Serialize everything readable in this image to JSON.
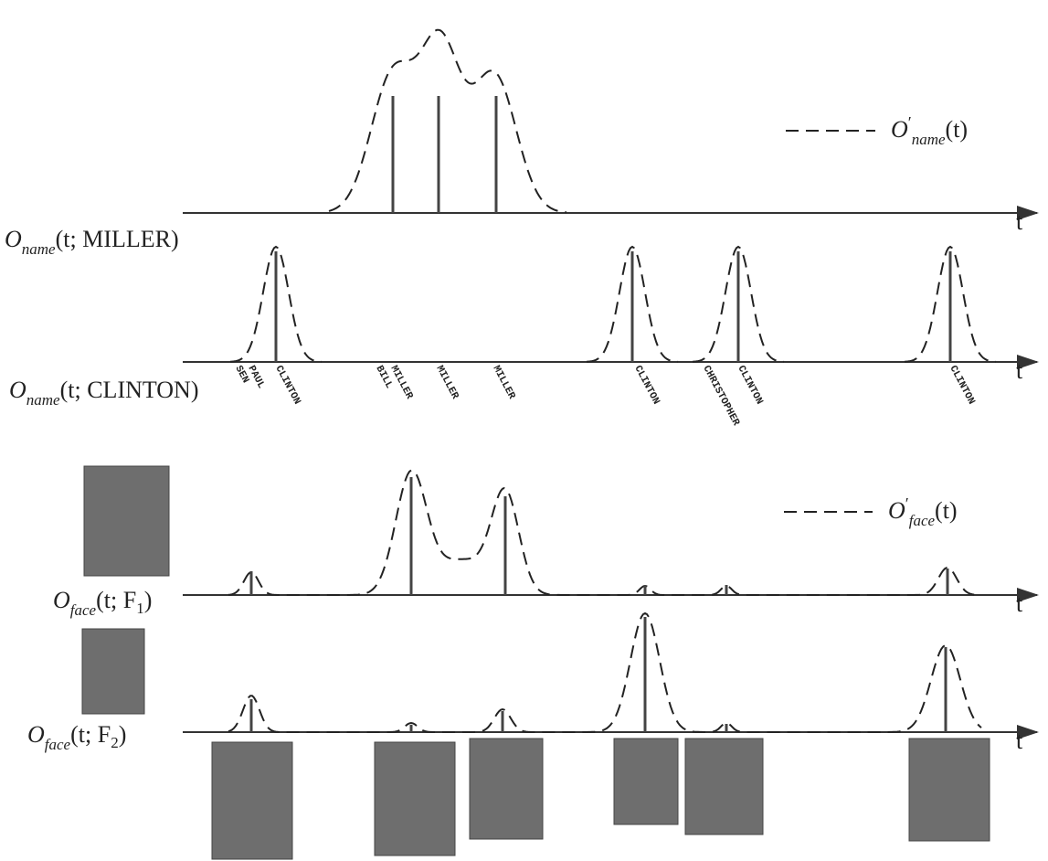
{
  "name_panel": {
    "legend": {
      "symbol": "O",
      "prime": "′",
      "subscript": "name",
      "args": "(t)"
    },
    "miller_label": {
      "symbol": "O",
      "subscript": "name",
      "args": "(t; MILLER)"
    },
    "clinton_label": {
      "symbol": "O",
      "subscript": "name",
      "args": "(t; CLINTON)"
    },
    "axis_labels": [
      "t",
      "t"
    ],
    "tokens": [
      "SEN",
      "PAUL",
      "CLINTON",
      "BILL",
      "MILLER",
      "MILLER",
      "MILLER",
      "CLINTON",
      "CHRISTOPHER",
      "CLINTON",
      "CLINTON"
    ]
  },
  "face_panel": {
    "legend": {
      "symbol": "O",
      "prime": "′",
      "subscript": "face",
      "args": "(t)"
    },
    "f1_label": {
      "symbol": "O",
      "subscript": "face",
      "args": "(t; F",
      "index": "1",
      "close": ")"
    },
    "f2_label": {
      "symbol": "O",
      "subscript": "face",
      "args": "(t; F",
      "index": "2",
      "close": ")"
    },
    "axis_labels": [
      "t",
      "t"
    ]
  }
}
